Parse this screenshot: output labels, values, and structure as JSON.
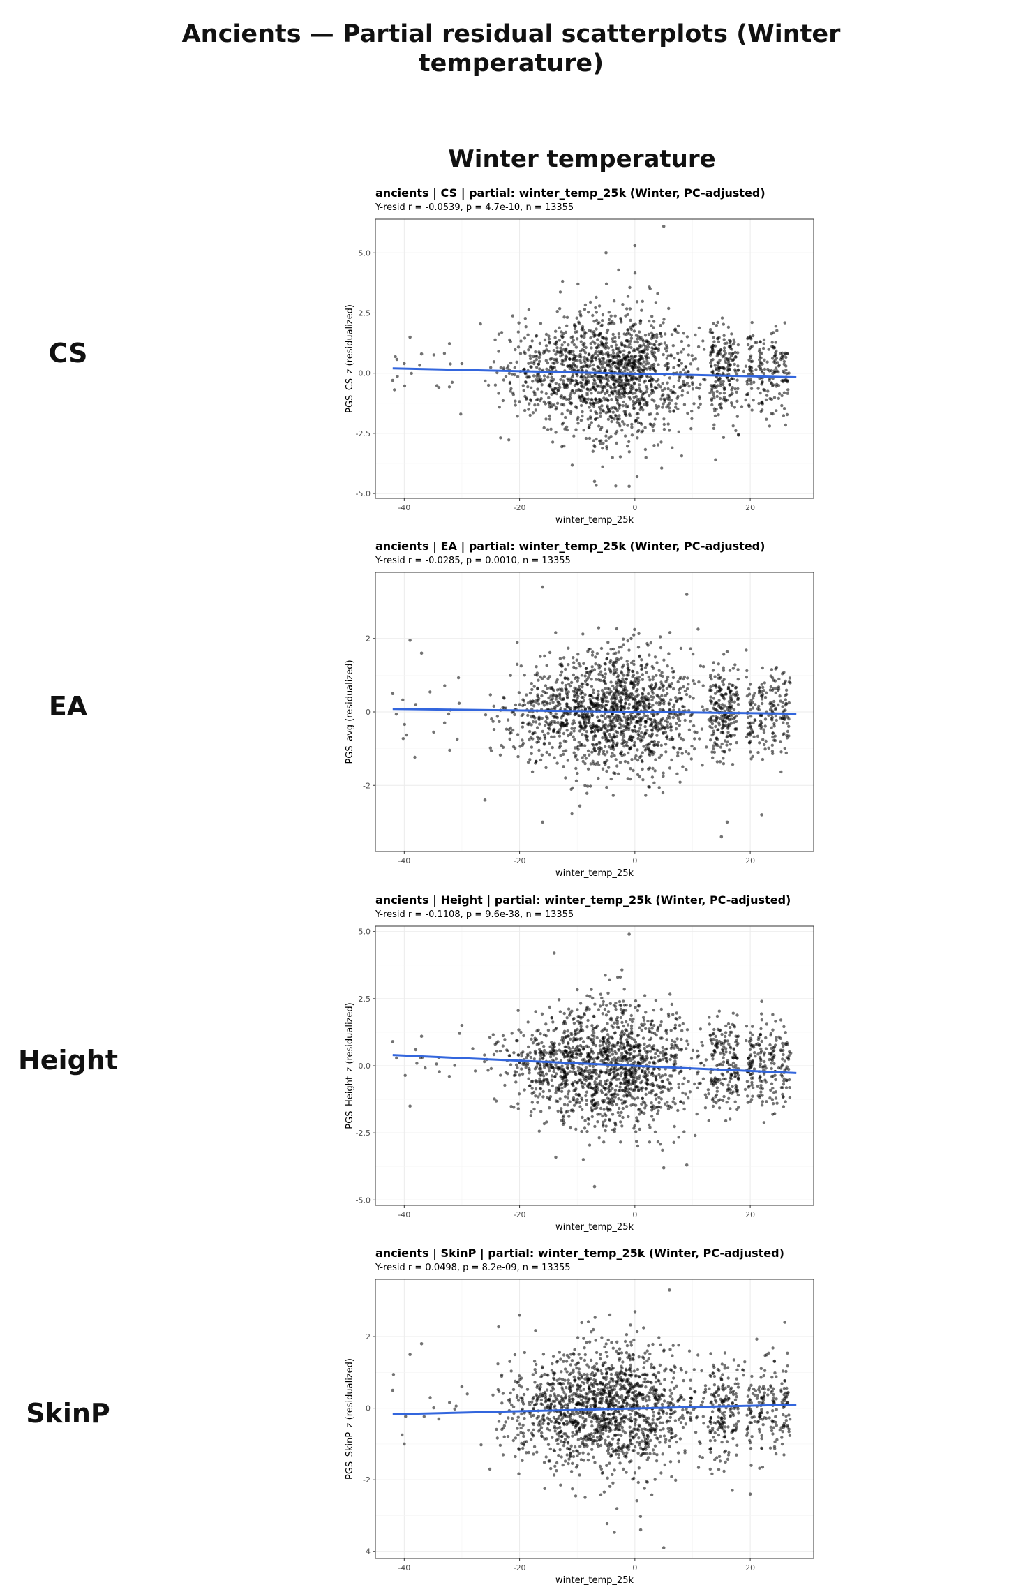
{
  "figure": {
    "title": "Ancients — Partial residual scatterplots (Winter temperature)",
    "column_title": "Winter temperature",
    "row_labels": [
      "CS",
      "EA",
      "Height",
      "SkinP"
    ]
  },
  "colors": {
    "fit_line": "#3366dd",
    "points": "#000000",
    "grid": "#ebebeb",
    "panel_border": "#333333"
  },
  "chart_data": [
    {
      "type": "scatter",
      "title": "ancients | CS | partial: winter_temp_25k (Winter, PC-adjusted)",
      "subtitle": "Y-resid r = -0.0539, p = 4.7e-10, n = 13355",
      "xlabel": "winter_temp_25k",
      "ylabel": "PGS_CS_z (residualized)",
      "xlim": [
        -45,
        31
      ],
      "ylim": [
        -5.2,
        6.4
      ],
      "x_ticks": [
        -40,
        -20,
        0,
        20
      ],
      "y_ticks": [
        -5.0,
        -2.5,
        0.0,
        2.5,
        5.0
      ],
      "y_tick_labels": [
        "-5.0",
        "-2.5",
        "0.0",
        "2.5",
        "5.0"
      ],
      "n": 13355,
      "y_spread": 1.3,
      "fit_line": {
        "x": [
          -42,
          28
        ],
        "y": [
          0.2,
          -0.17
        ]
      },
      "grid": true,
      "outliers": [
        {
          "x": -39,
          "y": 1.5
        },
        {
          "x": -37,
          "y": 0.8
        },
        {
          "x": -42,
          "y": -0.3
        },
        {
          "x": -40,
          "y": 0.4
        },
        {
          "x": -34,
          "y": -0.6
        },
        {
          "x": 0,
          "y": 5.3
        },
        {
          "x": 5,
          "y": 6.1
        },
        {
          "x": -5,
          "y": 5.0
        },
        {
          "x": -7,
          "y": -4.5
        },
        {
          "x": -1,
          "y": -4.7
        },
        {
          "x": 14,
          "y": -3.6
        },
        {
          "x": -30,
          "y": 0.4
        }
      ]
    },
    {
      "type": "scatter",
      "title": "ancients | EA | partial: winter_temp_25k (Winter, PC-adjusted)",
      "subtitle": "Y-resid r = -0.0285, p = 0.0010, n = 13355",
      "xlabel": "winter_temp_25k",
      "ylabel": "PGS_avg (residualized)",
      "xlim": [
        -45,
        31
      ],
      "ylim": [
        -3.8,
        3.8
      ],
      "x_ticks": [
        -40,
        -20,
        0,
        20
      ],
      "y_ticks": [
        -2,
        0,
        2
      ],
      "y_tick_labels": [
        "-2",
        "0",
        "2"
      ],
      "n": 13355,
      "y_spread": 0.8,
      "fit_line": {
        "x": [
          -42,
          28
        ],
        "y": [
          0.08,
          -0.05
        ]
      },
      "grid": true,
      "outliers": [
        {
          "x": -39,
          "y": 1.95
        },
        {
          "x": -37,
          "y": 1.6
        },
        {
          "x": -42,
          "y": 0.5
        },
        {
          "x": -38,
          "y": 0.2
        },
        {
          "x": -33,
          "y": -0.3
        },
        {
          "x": -16,
          "y": 3.4
        },
        {
          "x": 9,
          "y": 3.2
        },
        {
          "x": -16,
          "y": -3.0
        },
        {
          "x": 15,
          "y": -3.4
        },
        {
          "x": 16,
          "y": -3.0
        },
        {
          "x": 22,
          "y": -2.8
        },
        {
          "x": -26,
          "y": -2.4
        }
      ]
    },
    {
      "type": "scatter",
      "title": "ancients | Height | partial: winter_temp_25k (Winter, PC-adjusted)",
      "subtitle": "Y-resid r = -0.1108, p = 9.6e-38, n = 13355",
      "xlabel": "winter_temp_25k",
      "ylabel": "PGS_Height_z (residualized)",
      "xlim": [
        -45,
        31
      ],
      "ylim": [
        -5.2,
        5.2
      ],
      "x_ticks": [
        -40,
        -20,
        0,
        20
      ],
      "y_ticks": [
        -5.0,
        -2.5,
        0.0,
        2.5,
        5.0
      ],
      "y_tick_labels": [
        "-5.0",
        "-2.5",
        "0.0",
        "2.5",
        "5.0"
      ],
      "n": 13355,
      "y_spread": 1.1,
      "fit_line": {
        "x": [
          -42,
          28
        ],
        "y": [
          0.4,
          -0.27
        ]
      },
      "grid": true,
      "outliers": [
        {
          "x": -42,
          "y": 0.9
        },
        {
          "x": -37,
          "y": 1.1
        },
        {
          "x": -38,
          "y": 0.6
        },
        {
          "x": -39,
          "y": -1.5
        },
        {
          "x": -34,
          "y": 0.3
        },
        {
          "x": -14,
          "y": 4.2
        },
        {
          "x": -1,
          "y": 4.9
        },
        {
          "x": -7,
          "y": -4.5
        },
        {
          "x": 5,
          "y": -3.8
        },
        {
          "x": 22,
          "y": 2.4
        },
        {
          "x": -30,
          "y": 1.5
        },
        {
          "x": 9,
          "y": -3.7
        }
      ]
    },
    {
      "type": "scatter",
      "title": "ancients | SkinP | partial: winter_temp_25k (Winter, PC-adjusted)",
      "subtitle": "Y-resid r = 0.0498, p = 8.2e-09, n = 13355",
      "xlabel": "winter_temp_25k",
      "ylabel": "PGS_SkinP_z (residualized)",
      "xlim": [
        -45,
        31
      ],
      "ylim": [
        -4.2,
        3.6
      ],
      "x_ticks": [
        -40,
        -20,
        0,
        20
      ],
      "y_ticks": [
        -4,
        -2,
        0,
        2
      ],
      "y_tick_labels": [
        "-4",
        "-2",
        "0",
        "2"
      ],
      "n": 13355,
      "y_spread": 0.85,
      "fit_line": {
        "x": [
          -42,
          28
        ],
        "y": [
          -0.17,
          0.1
        ]
      },
      "grid": true,
      "outliers": [
        {
          "x": -39,
          "y": 1.5
        },
        {
          "x": -37,
          "y": 1.8
        },
        {
          "x": -42,
          "y": 0.5
        },
        {
          "x": -40,
          "y": -1.0
        },
        {
          "x": -34,
          "y": -0.3
        },
        {
          "x": 5,
          "y": -3.9
        },
        {
          "x": 1,
          "y": -3.4
        },
        {
          "x": 6,
          "y": 3.3
        },
        {
          "x": -20,
          "y": 2.6
        },
        {
          "x": 20,
          "y": -2.4
        },
        {
          "x": 26,
          "y": 2.4
        },
        {
          "x": -30,
          "y": 0.6
        }
      ]
    }
  ]
}
